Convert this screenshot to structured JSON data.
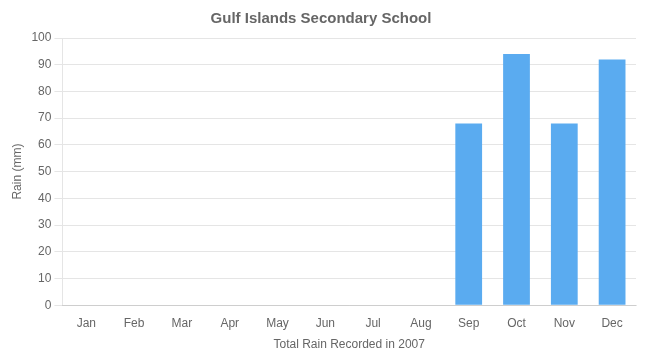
{
  "chart_data": {
    "type": "bar",
    "title": "Gulf Islands Secondary School",
    "xlabel": "Total Rain Recorded in 2007",
    "ylabel": "Rain (mm)",
    "categories": [
      "Jan",
      "Feb",
      "Mar",
      "Apr",
      "May",
      "Jun",
      "Jul",
      "Aug",
      "Sep",
      "Oct",
      "Nov",
      "Dec"
    ],
    "values": [
      0,
      0,
      0,
      0,
      0,
      0,
      0,
      0,
      68,
      94,
      68,
      92
    ],
    "color": "#5aabf0",
    "ylim": [
      0,
      100
    ],
    "yticks": [
      0,
      10,
      20,
      30,
      40,
      50,
      60,
      70,
      80,
      90,
      100
    ],
    "grid": true
  }
}
